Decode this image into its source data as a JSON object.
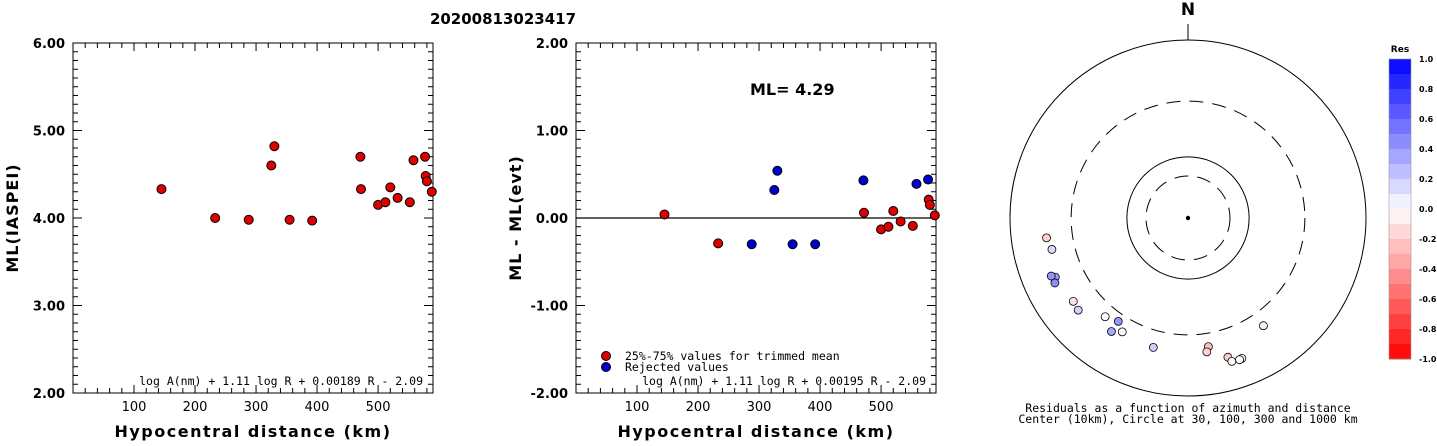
{
  "title": "20200813023417",
  "chart_data": [
    {
      "type": "scatter",
      "xlabel": "Hypocentral distance (km)",
      "ylabel": "ML(IASPEI)",
      "xlim": [
        0,
        590
      ],
      "ylim": [
        2.0,
        6.0
      ],
      "x_ticks": [
        100,
        200,
        300,
        400,
        500
      ],
      "y_ticks": [
        "2.00",
        "3.00",
        "4.00",
        "5.00",
        "6.00"
      ],
      "formula": "log A(nm) + 1.11 log R + 0.00189 R - 2.09",
      "series": [
        {
          "color": "#dd0000",
          "points": [
            [
              145,
              4.33
            ],
            [
              233,
              4.0
            ],
            [
              288,
              3.98
            ],
            [
              325,
              4.6
            ],
            [
              330,
              4.82
            ],
            [
              355,
              3.98
            ],
            [
              392,
              3.97
            ],
            [
              471,
              4.7
            ],
            [
              472,
              4.33
            ],
            [
              500,
              4.15
            ],
            [
              512,
              4.18
            ],
            [
              520,
              4.35
            ],
            [
              532,
              4.23
            ],
            [
              552,
              4.18
            ],
            [
              558,
              4.66
            ],
            [
              577,
              4.7
            ],
            [
              578,
              4.48
            ],
            [
              580,
              4.42
            ],
            [
              588,
              4.3
            ]
          ]
        }
      ]
    },
    {
      "type": "scatter",
      "xlabel": "Hypocentral distance (km)",
      "ylabel": "ML - ML(evt)",
      "xlim": [
        0,
        590
      ],
      "ylim": [
        -2.0,
        2.0
      ],
      "x_ticks": [
        100,
        200,
        300,
        400,
        500
      ],
      "y_ticks": [
        "-2.00",
        "-1.00",
        "0.00",
        "1.00",
        "2.00"
      ],
      "annotation": "ML=  4.29",
      "formula": "log A(nm) + 1.11 log R + 0.00195 R - 2.09",
      "legend": [
        {
          "label": "25%-75% values for trimmed mean",
          "color": "#dd0000"
        },
        {
          "label": "Rejected values",
          "color": "#0000cc"
        }
      ],
      "series": [
        {
          "name": "25%-75% values for trimmed mean",
          "color": "#dd0000",
          "points": [
            [
              145,
              0.04
            ],
            [
              233,
              -0.29
            ],
            [
              472,
              0.06
            ],
            [
              500,
              -0.13
            ],
            [
              512,
              -0.1
            ],
            [
              520,
              0.08
            ],
            [
              532,
              -0.04
            ],
            [
              552,
              -0.09
            ],
            [
              578,
              0.21
            ],
            [
              580,
              0.15
            ],
            [
              588,
              0.03
            ]
          ]
        },
        {
          "name": "Rejected values",
          "color": "#0000cc",
          "points": [
            [
              288,
              -0.3
            ],
            [
              325,
              0.32
            ],
            [
              330,
              0.54
            ],
            [
              355,
              -0.3
            ],
            [
              392,
              -0.3
            ],
            [
              471,
              0.43
            ],
            [
              558,
              0.39
            ],
            [
              577,
              0.44
            ]
          ]
        }
      ]
    }
  ],
  "polar": {
    "north_label": "N",
    "caption_line1": "Residuals as a function of azimuth and distance",
    "caption_line2": "Center (10km), Circle at 30, 100, 300 and 1000 km",
    "colorbar_title": "Res",
    "colorbar_ticks": [
      "1.0",
      "0.8",
      "0.6",
      "0.4",
      "0.2",
      "0.0",
      "-0.2",
      "-0.4",
      "-0.6",
      "-0.8",
      "-1.0"
    ],
    "stations": [
      {
        "az": 257,
        "dist": 470,
        "res": 0.15
      },
      {
        "az": 262,
        "dist": 500,
        "res": -0.18
      },
      {
        "az": 246,
        "dist": 525,
        "res": 0.38
      },
      {
        "az": 247,
        "dist": 560,
        "res": 0.42
      },
      {
        "az": 244,
        "dist": 555,
        "res": 0.45
      },
      {
        "az": 234,
        "dist": 490,
        "res": -0.12
      },
      {
        "az": 230,
        "dist": 505,
        "res": 0.18
      },
      {
        "az": 220,
        "dist": 380,
        "res": 0.0
      },
      {
        "az": 214,
        "dist": 445,
        "res": 0.35
      },
      {
        "az": 214,
        "dist": 350,
        "res": 0.42
      },
      {
        "az": 210,
        "dist": 400,
        "res": 0.02
      },
      {
        "az": 195,
        "dist": 420,
        "res": 0.2
      },
      {
        "az": 171,
        "dist": 390,
        "res": -0.25
      },
      {
        "az": 172,
        "dist": 430,
        "res": -0.18
      },
      {
        "az": 164,
        "dist": 520,
        "res": -0.22
      },
      {
        "az": 163,
        "dist": 575,
        "res": 0.02
      },
      {
        "az": 159,
        "dist": 580,
        "res": 0.03
      },
      {
        "az": 160,
        "dist": 585,
        "res": 0.02
      },
      {
        "az": 145,
        "dist": 400,
        "res": 0.05
      }
    ]
  }
}
